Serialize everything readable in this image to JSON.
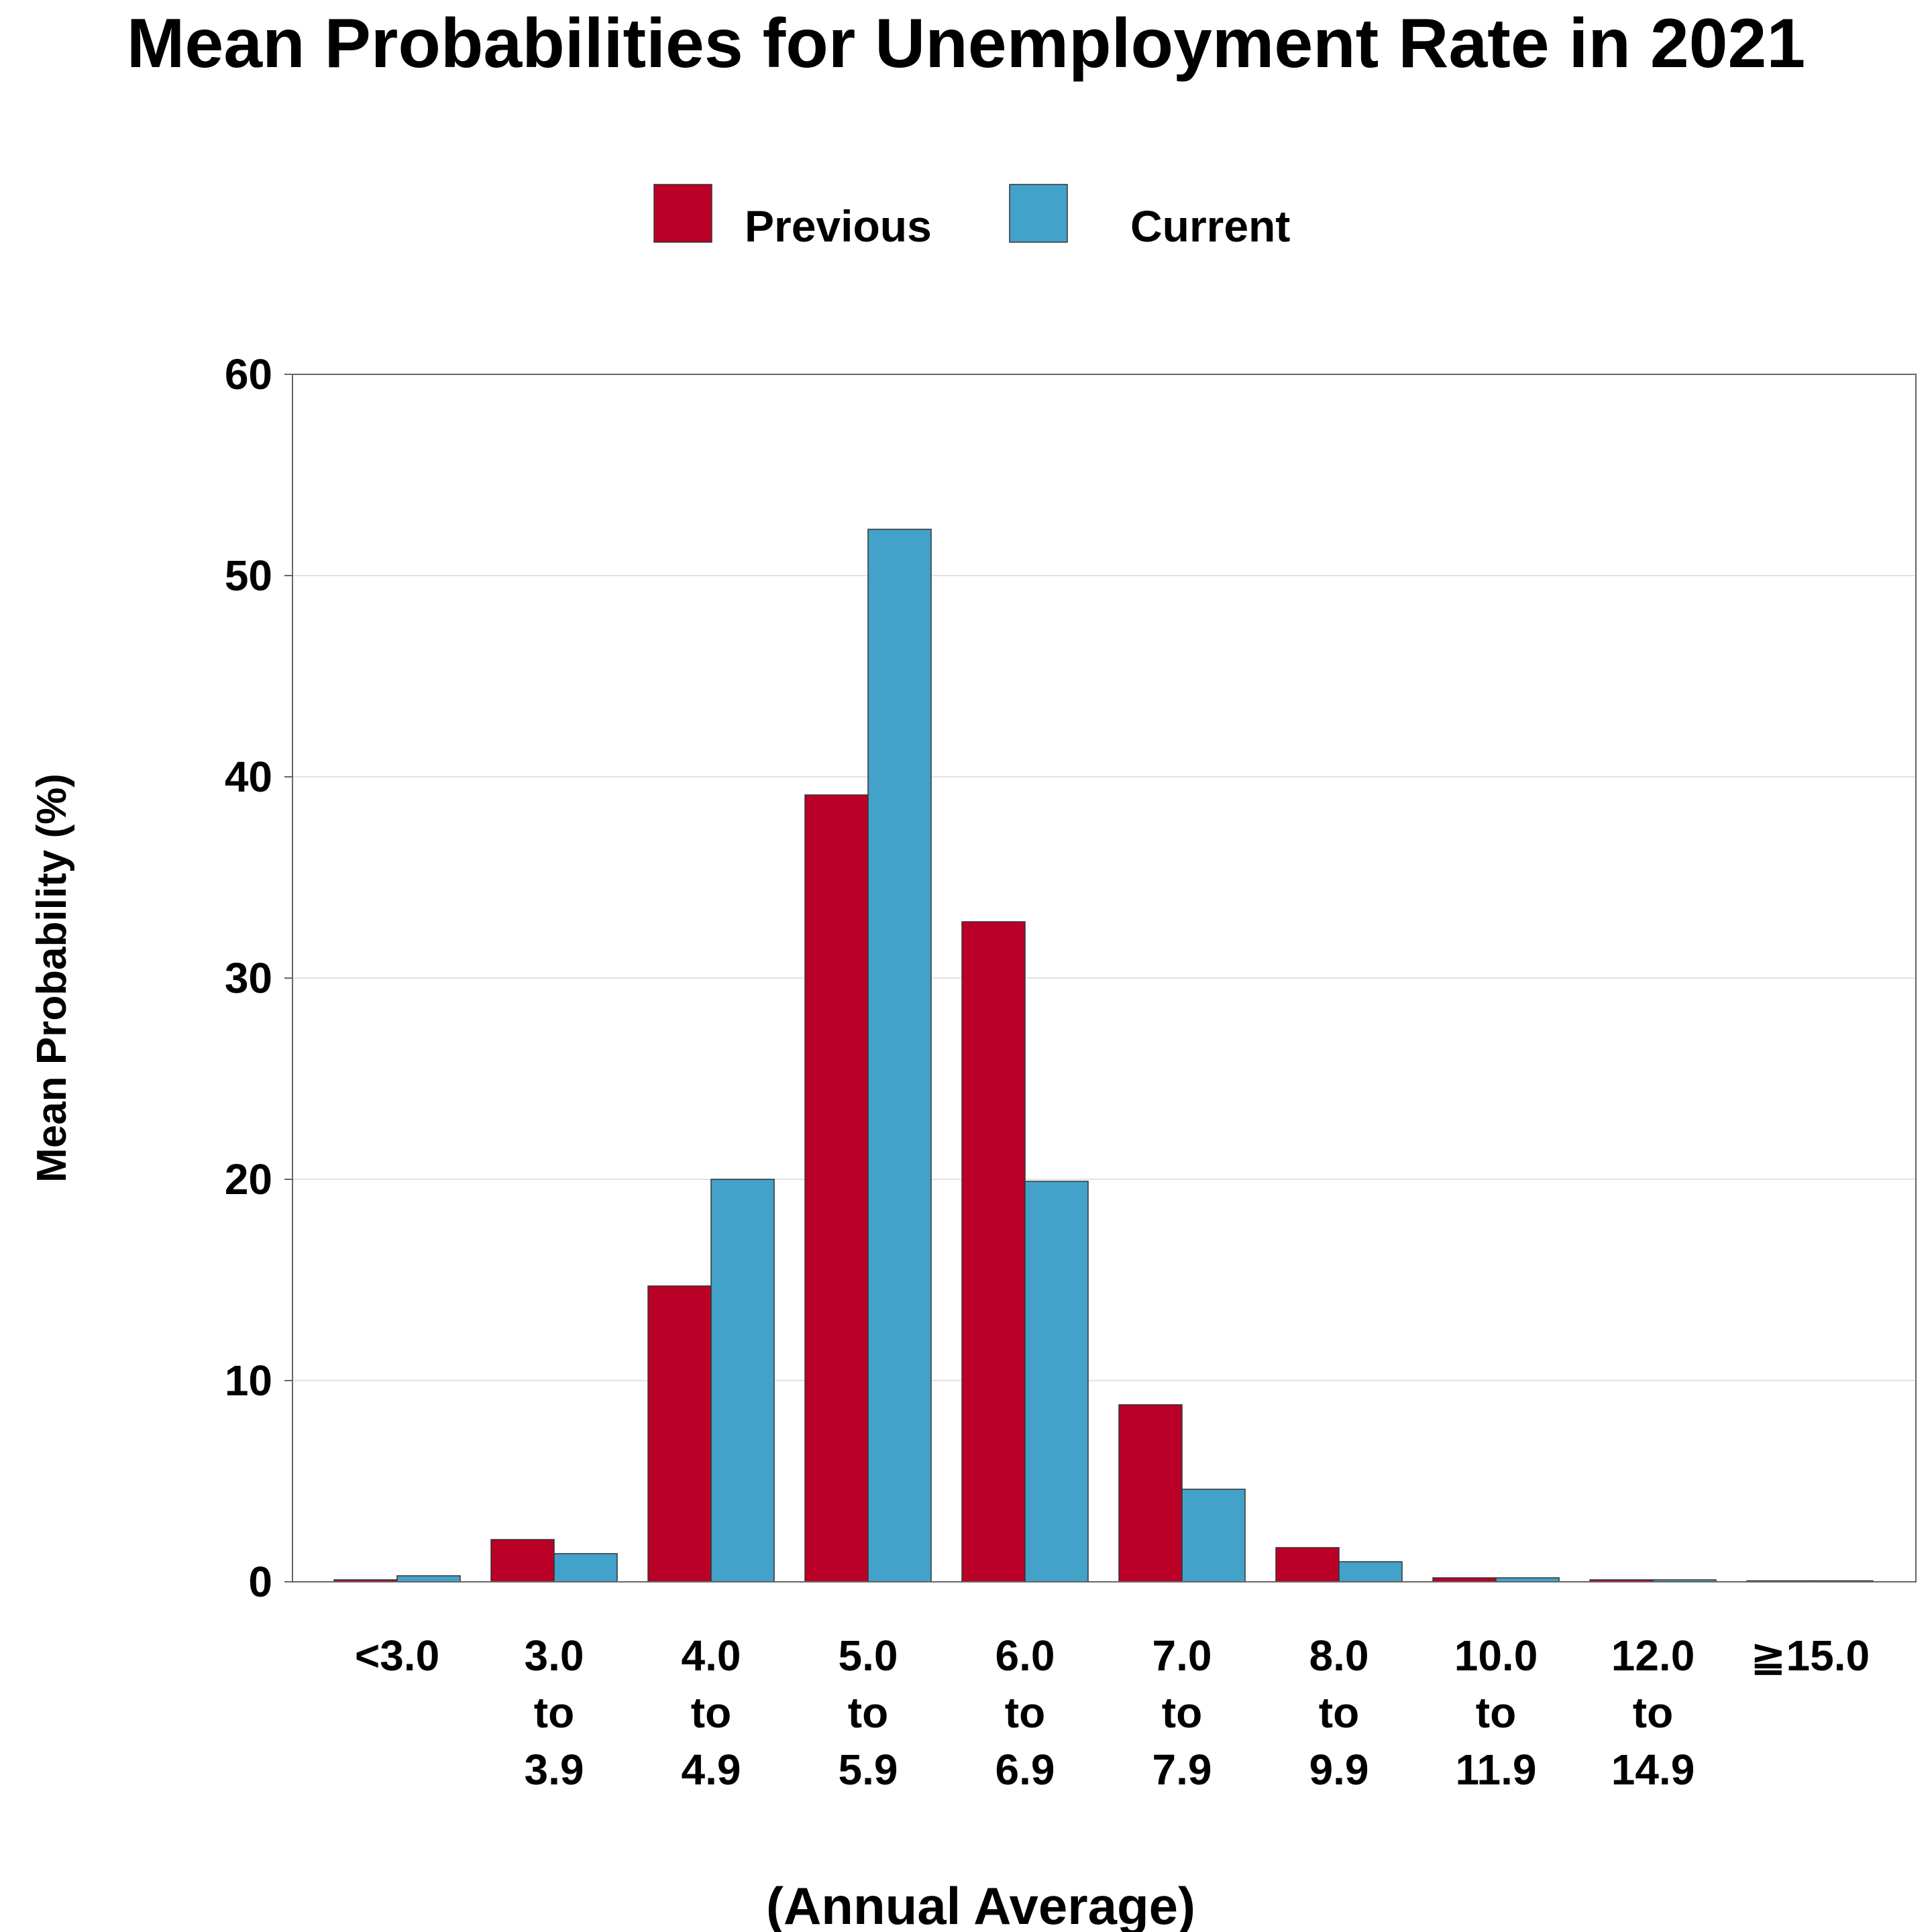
{
  "chart_data": {
    "type": "bar",
    "title": "Mean Probabilities for Unemployment Rate in 2021",
    "xlabel": "(Annual Average)",
    "ylabel": "Mean Probability (%)",
    "ylim": [
      0,
      60
    ],
    "yticks": [
      "0",
      "10",
      "20",
      "30",
      "40",
      "50",
      "60"
    ],
    "grid": true,
    "legend_position": "top-center",
    "categories": [
      [
        "<3.0"
      ],
      [
        "3.0",
        "to",
        "3.9"
      ],
      [
        "4.0",
        "to",
        "4.9"
      ],
      [
        "5.0",
        "to",
        "5.9"
      ],
      [
        "6.0",
        "to",
        "6.9"
      ],
      [
        "7.0",
        "to",
        "7.9"
      ],
      [
        "8.0",
        "to",
        "9.9"
      ],
      [
        "10.0",
        "to",
        "11.9"
      ],
      [
        "12.0",
        "to",
        "14.9"
      ],
      [
        "≧15.0"
      ]
    ],
    "series": [
      {
        "name": "Previous",
        "color": "#BA0026",
        "values": [
          0.1,
          2.1,
          14.7,
          39.1,
          32.8,
          8.8,
          1.7,
          0.2,
          0.1,
          0.05
        ]
      },
      {
        "name": "Current",
        "color": "#43A2CA",
        "values": [
          0.3,
          1.4,
          20.0,
          52.3,
          19.9,
          4.6,
          1.0,
          0.2,
          0.1,
          0.05
        ]
      }
    ]
  }
}
